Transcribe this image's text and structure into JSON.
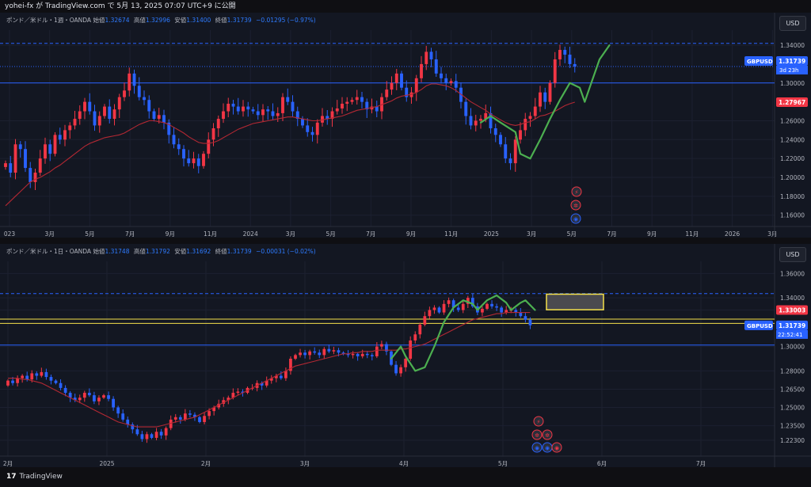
{
  "topbar": {
    "text": "yohei-fx が TradingView.com で 5月 13, 2025 07:07 UTC+9 に公開"
  },
  "footer": {
    "logo": "17",
    "brand": "TradingView"
  },
  "colors": {
    "up": "#f23645",
    "down": "#2962ff",
    "ma": "#b22833",
    "green": "#4caf50",
    "yellow": "#f5e14b",
    "grid": "#1c2030",
    "price_blue": "#2962ff",
    "sl_red": "#f23645"
  },
  "chart_data": [
    {
      "type": "candlestick",
      "title": "ポンド／米ドル・1週・OANDA",
      "ohlc": {
        "o_label": "始値",
        "o": "1.32674",
        "h_label": "高値",
        "h": "1.32996",
        "l_label": "安値",
        "l": "1.31400",
        "c_label": "終値",
        "c": "1.31739",
        "change": "−0.01295 (−0.97%)"
      },
      "currency": "USD",
      "y_ticks": [
        "1.34000",
        "1.30000",
        "1.26000",
        "1.24000",
        "1.22000",
        "1.20000",
        "1.18000",
        "1.16000"
      ],
      "y_tick_values": [
        1.34,
        1.3,
        1.26,
        1.24,
        1.22,
        1.2,
        1.18,
        1.16
      ],
      "ylim": [
        1.148,
        1.356
      ],
      "x_ticks": [
        "023",
        "3月",
        "5月",
        "7月",
        "9月",
        "11月",
        "2024",
        "3月",
        "5月",
        "7月",
        "9月",
        "11月",
        "2025",
        "3月",
        "5月",
        "7月",
        "9月",
        "11月",
        "2026",
        "3月"
      ],
      "last_label": "GBPUSD",
      "last_price": "1.31739",
      "countdown": "3d 23h",
      "ma_label": "1.27967",
      "close_series": [
        1.215,
        1.205,
        1.235,
        1.23,
        1.21,
        1.195,
        1.205,
        1.22,
        1.235,
        1.225,
        1.245,
        1.24,
        1.25,
        1.255,
        1.262,
        1.27,
        1.28,
        1.27,
        1.255,
        1.265,
        1.275,
        1.262,
        1.272,
        1.285,
        1.292,
        1.31,
        1.297,
        1.285,
        1.282,
        1.27,
        1.262,
        1.266,
        1.258,
        1.245,
        1.235,
        1.23,
        1.22,
        1.215,
        1.22,
        1.212,
        1.225,
        1.24,
        1.252,
        1.262,
        1.27,
        1.278,
        1.275,
        1.27,
        1.275,
        1.272,
        1.27,
        1.266,
        1.272,
        1.27,
        1.265,
        1.268,
        1.285,
        1.28,
        1.27,
        1.262,
        1.255,
        1.248,
        1.245,
        1.258,
        1.265,
        1.262,
        1.27,
        1.273,
        1.278,
        1.28,
        1.282,
        1.285,
        1.28,
        1.272,
        1.275,
        1.27,
        1.285,
        1.293,
        1.3,
        1.31,
        1.295,
        1.285,
        1.29,
        1.305,
        1.32,
        1.333,
        1.325,
        1.31,
        1.305,
        1.3,
        1.302,
        1.295,
        1.28,
        1.265,
        1.255,
        1.26,
        1.262,
        1.268,
        1.252,
        1.245,
        1.235,
        1.22,
        1.215,
        1.24,
        1.25,
        1.262,
        1.265,
        1.275,
        1.29,
        1.28,
        1.3,
        1.325,
        1.335,
        1.33,
        1.32,
        1.3174
      ],
      "ma_series": [
        1.17,
        1.175,
        1.18,
        1.185,
        1.19,
        1.195,
        1.198,
        1.2,
        1.203,
        1.206,
        1.21,
        1.213,
        1.217,
        1.221,
        1.225,
        1.229,
        1.233,
        1.236,
        1.238,
        1.24,
        1.242,
        1.243,
        1.244,
        1.245,
        1.247,
        1.25,
        1.253,
        1.256,
        1.258,
        1.26,
        1.26,
        1.259,
        1.258,
        1.256,
        1.253,
        1.25,
        1.247,
        1.243,
        1.24,
        1.237,
        1.236,
        1.236,
        1.237,
        1.239,
        1.242,
        1.245,
        1.248,
        1.251,
        1.253,
        1.255,
        1.257,
        1.258,
        1.259,
        1.26,
        1.261,
        1.262,
        1.263,
        1.264,
        1.264,
        1.263,
        1.262,
        1.261,
        1.26,
        1.26,
        1.261,
        1.262,
        1.263,
        1.264,
        1.265,
        1.267,
        1.269,
        1.271,
        1.272,
        1.273,
        1.274,
        1.275,
        1.277,
        1.279,
        1.281,
        1.284,
        1.286,
        1.287,
        1.288,
        1.29,
        1.293,
        1.297,
        1.299,
        1.299,
        1.298,
        1.297,
        1.295,
        1.292,
        1.288,
        1.284,
        1.28,
        1.277,
        1.274,
        1.271,
        1.267,
        1.264,
        1.261,
        1.258,
        1.256,
        1.255,
        1.256,
        1.258,
        1.259,
        1.262,
        1.265,
        1.266,
        1.268,
        1.27,
        1.273,
        1.276,
        1.278,
        1.2797
      ]
    },
    {
      "type": "candlestick",
      "title": "ポンド／米ドル・1日・OANDA",
      "ohlc": {
        "o_label": "始値",
        "o": "1.31748",
        "h_label": "高値",
        "h": "1.31792",
        "l_label": "安値",
        "l": "1.31692",
        "c_label": "終値",
        "c": "1.31739",
        "change": "−0.00031 (−0.02%)"
      },
      "currency": "USD",
      "y_ticks": [
        "1.36000",
        "1.34000",
        "1.33003",
        "1.30000",
        "1.28000",
        "1.26500",
        "1.25000",
        "1.23500",
        "1.22300"
      ],
      "y_tick_values": [
        1.36,
        1.34,
        1.33003,
        1.3,
        1.28,
        1.265,
        1.25,
        1.235,
        1.223
      ],
      "ylim": [
        1.21,
        1.37
      ],
      "x_ticks": [
        "2月",
        "2025",
        "2月",
        "3月",
        "4月",
        "5月",
        "6月",
        "7月"
      ],
      "last_label": "GBPUSD",
      "last_price": "1.31739",
      "countdown": "22:52:41",
      "hline_label": "1.33003",
      "close_series": [
        1.272,
        1.27,
        1.274,
        1.276,
        1.273,
        1.278,
        1.276,
        1.279,
        1.275,
        1.272,
        1.27,
        1.266,
        1.262,
        1.258,
        1.256,
        1.258,
        1.262,
        1.26,
        1.255,
        1.258,
        1.26,
        1.257,
        1.25,
        1.245,
        1.24,
        1.236,
        1.232,
        1.228,
        1.224,
        1.228,
        1.225,
        1.23,
        1.227,
        1.233,
        1.24,
        1.242,
        1.24,
        1.245,
        1.244,
        1.242,
        1.238,
        1.243,
        1.247,
        1.25,
        1.253,
        1.256,
        1.258,
        1.262,
        1.263,
        1.262,
        1.266,
        1.266,
        1.27,
        1.268,
        1.272,
        1.274,
        1.276,
        1.274,
        1.28,
        1.29,
        1.293,
        1.295,
        1.293,
        1.296,
        1.295,
        1.293,
        1.298,
        1.296,
        1.297,
        1.295,
        1.294,
        1.293,
        1.294,
        1.292,
        1.294,
        1.293,
        1.292,
        1.3,
        1.302,
        1.296,
        1.285,
        1.278,
        1.283,
        1.29,
        1.305,
        1.31,
        1.318,
        1.325,
        1.33,
        1.332,
        1.328,
        1.335,
        1.338,
        1.332,
        1.33,
        1.335,
        1.34,
        1.333,
        1.328,
        1.331,
        1.335,
        1.333,
        1.332,
        1.328,
        1.33,
        1.33,
        1.328,
        1.325,
        1.322,
        1.3174
      ],
      "ma_series": [
        1.274,
        1.274,
        1.274,
        1.273,
        1.273,
        1.272,
        1.271,
        1.27,
        1.268,
        1.266,
        1.264,
        1.262,
        1.26,
        1.258,
        1.256,
        1.254,
        1.252,
        1.25,
        1.248,
        1.246,
        1.244,
        1.242,
        1.24,
        1.238,
        1.237,
        1.236,
        1.235,
        1.234,
        1.234,
        1.234,
        1.234,
        1.234,
        1.235,
        1.236,
        1.237,
        1.238,
        1.239,
        1.24,
        1.241,
        1.242,
        1.244,
        1.246,
        1.248,
        1.25,
        1.252,
        1.254,
        1.256,
        1.258,
        1.26,
        1.262,
        1.264,
        1.266,
        1.268,
        1.27,
        1.272,
        1.274,
        1.276,
        1.278,
        1.28,
        1.282,
        1.284,
        1.285,
        1.286,
        1.287,
        1.288,
        1.289,
        1.29,
        1.291,
        1.292,
        1.293,
        1.294,
        1.294,
        1.295,
        1.295,
        1.296,
        1.296,
        1.296,
        1.297,
        1.297,
        1.297,
        1.297,
        1.297,
        1.298,
        1.298,
        1.299,
        1.3,
        1.301,
        1.302,
        1.304,
        1.306,
        1.308,
        1.31,
        1.312,
        1.314,
        1.316,
        1.318,
        1.32,
        1.322,
        1.323,
        1.324,
        1.325,
        1.326,
        1.327,
        1.327,
        1.328,
        1.328,
        1.328,
        1.328,
        1.328,
        1.328
      ]
    }
  ]
}
